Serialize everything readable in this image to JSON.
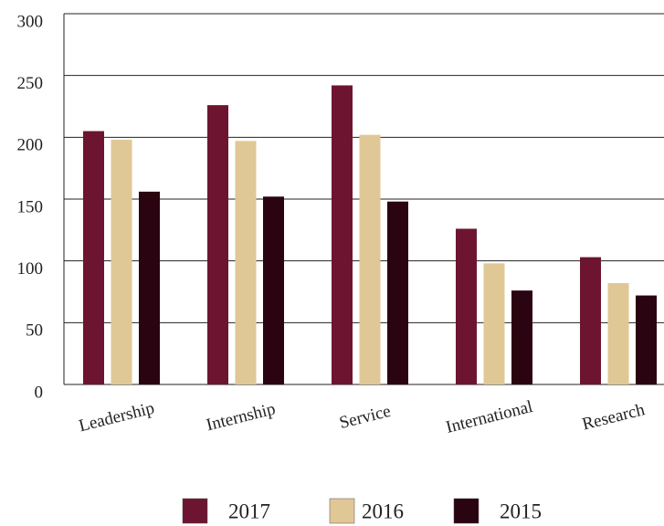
{
  "chart_data": {
    "type": "bar",
    "categories": [
      "Leadership",
      "Internship",
      "Service",
      "International",
      "Research"
    ],
    "series": [
      {
        "name": "2017",
        "color": "#6d1530",
        "values": [
          205,
          226,
          242,
          126,
          103
        ]
      },
      {
        "name": "2016",
        "color": "#e0c796",
        "values": [
          198,
          197,
          202,
          98,
          82
        ]
      },
      {
        "name": "2015",
        "color": "#2a0410",
        "values": [
          156,
          152,
          148,
          76,
          72
        ]
      }
    ],
    "ylim": [
      0,
      300
    ],
    "yticks": [
      0,
      50,
      100,
      150,
      200,
      250,
      300
    ],
    "grid": true
  }
}
